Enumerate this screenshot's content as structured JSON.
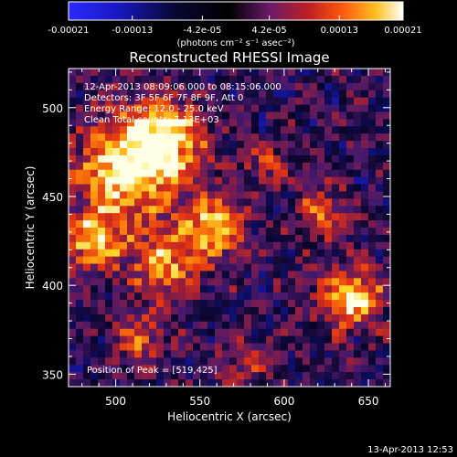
{
  "colorbar": {
    "tick_labels": [
      "-0.00021",
      "-0.00013",
      "-4.2e-05",
      "4.2e-05",
      "0.00013",
      "0.00021"
    ],
    "tick_values": [
      -0.00021,
      -0.00013,
      -4.2e-05,
      4.2e-05,
      0.00013,
      0.00021
    ],
    "range": [
      -0.00021,
      0.00021
    ],
    "unit_label": "(photons cm⁻² s⁻¹ asec⁻²)",
    "colors": {
      "low": "#1a1aff",
      "mid_low": "#000000",
      "mid": "#7a1c6e",
      "mid_high": "#e03a12",
      "high": "#ffffff"
    }
  },
  "plot": {
    "title": "Reconstructed RHESSI Image",
    "info_lines": [
      "12-Apr-2013 08:09:06.000 to 08:15:06.000",
      "Detectors: 3F 5F 6F 7F 8F 9F, Att 0",
      "Energy Range: 12.0 - 25.0 keV",
      "Clean    Total counts: 7.13E+03"
    ],
    "peak_label": "Position of Peak = [519,425]",
    "peak_position": [
      519,
      425
    ],
    "xlabel": "Heliocentric X (arcsec)",
    "ylabel": "Heliocentric Y (arcsec)",
    "x_tick_labels": [
      "500",
      "550",
      "600",
      "650"
    ],
    "x_tick_values": [
      500,
      550,
      600,
      650
    ],
    "y_tick_labels": [
      "350",
      "400",
      "450",
      "500"
    ],
    "y_tick_values": [
      350,
      400,
      450,
      500
    ],
    "xlim": [
      472,
      663
    ],
    "ylim": [
      343,
      522
    ]
  },
  "footer": {
    "timestamp": "13-Apr-2013 12:53"
  }
}
